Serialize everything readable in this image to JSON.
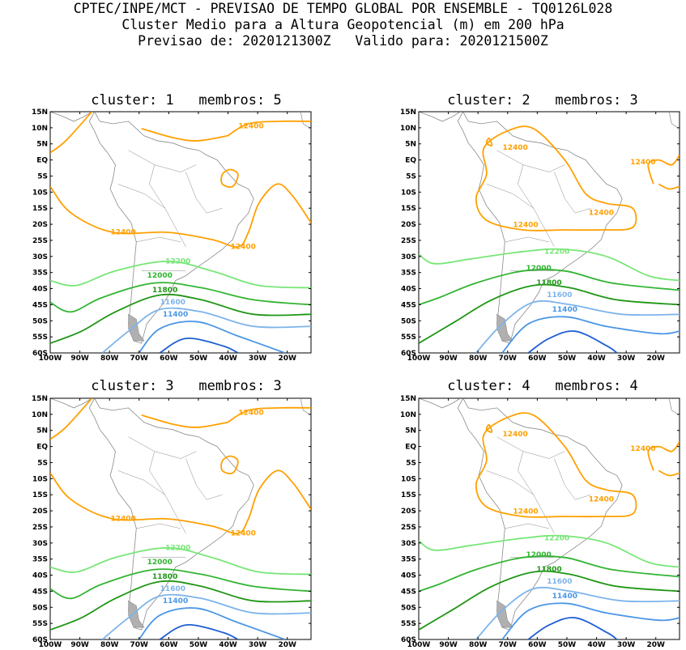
{
  "header": {
    "line1": "CPTEC/INPE/MCT - PREVISAO DE TEMPO GLOBAL POR ENSEMBLE - TQ0126L028",
    "line2": "Cluster Medio para a Altura Geopotencial (m) em 200 hPa",
    "line3": "Previsao de: 2020121300Z   Valido para: 2020121500Z"
  },
  "axes": {
    "lat_labels": [
      "15N",
      "10N",
      "5N",
      "EQ",
      "5S",
      "10S",
      "15S",
      "20S",
      "25S",
      "30S",
      "35S",
      "40S",
      "45S",
      "50S",
      "55S",
      "60S"
    ],
    "lon_labels": [
      "100W",
      "90W",
      "80W",
      "70W",
      "60W",
      "50W",
      "40W",
      "30W",
      "20W"
    ]
  },
  "colors": {
    "c12400": "#ffa000",
    "c12200": "#78e678",
    "c12000": "#32b432",
    "c11800": "#1e9614",
    "c11600": "#7db4eb",
    "c11400": "#4a96e6",
    "c11200": "#1e5fd2",
    "coast": "#8a8a8a"
  },
  "panels": [
    {
      "title": "cluster: 1   membros: 5",
      "labels": {
        "l12400a": "12400",
        "l12400b": "12400",
        "l12400c": "12400",
        "l12200": "12200",
        "l12000": "12000",
        "l11800": "11800",
        "l11600": "11600",
        "l11400": "11400"
      }
    },
    {
      "title": "cluster: 2   membros: 3",
      "labels": {
        "l12400a": "12400",
        "l12400b": "12400",
        "l12400c": "12400",
        "l12400d": "12400",
        "l12200": "12200",
        "l12000": "12000",
        "l11800": "11800",
        "l11600": "11600",
        "l11400": "11400"
      }
    },
    {
      "title": "cluster: 3   membros: 3",
      "labels": {
        "l12400a": "12400",
        "l12400b": "12400",
        "l12400c": "12400",
        "l12200": "12200",
        "l12000": "12000",
        "l11800": "11800",
        "l11600": "11600",
        "l11400": "11400"
      }
    },
    {
      "title": "cluster: 4   membros: 4",
      "labels": {
        "l12400a": "12400",
        "l12400b": "12400",
        "l12400c": "12400",
        "l12400d": "12400",
        "l12200": "12200",
        "l12000": "12000",
        "l11800": "11800",
        "l11600": "11600",
        "l11400": "11400"
      }
    }
  ]
}
